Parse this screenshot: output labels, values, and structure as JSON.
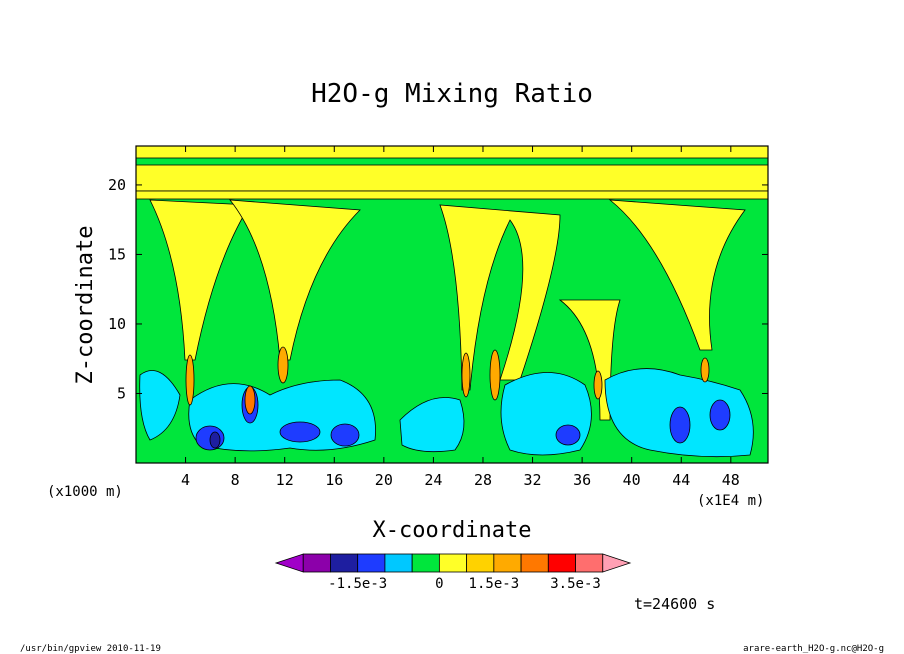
{
  "chart_data": {
    "type": "heatmap",
    "title": "H2O-g Mixing Ratio",
    "xlabel": "X-coordinate",
    "ylabel": "Z-coordinate",
    "x_unit_label": "(x1E4 m)",
    "y_unit_label": "(x1000 m)",
    "xlim": [
      0,
      51
    ],
    "ylim": [
      0,
      22.8
    ],
    "xticks": [
      4,
      8,
      12,
      16,
      20,
      24,
      28,
      32,
      36,
      40,
      44,
      48
    ],
    "yticks": [
      5,
      10,
      15,
      20
    ],
    "xtick_labels": [
      "4",
      "8",
      "12",
      "16",
      "20",
      "24",
      "28",
      "32",
      "36",
      "40",
      "44",
      "48"
    ],
    "ytick_labels": [
      "5",
      "10",
      "15",
      "20"
    ],
    "colorbar": {
      "levels": [
        "-1.5e-3",
        "0",
        "1.5e-3",
        "3.5e-3"
      ],
      "colors": [
        "#a000c8",
        "#8c00aa",
        "#1e1ea0",
        "#1e3cff",
        "#00c8ff",
        "#00e63c",
        "#ffff28",
        "#ffd200",
        "#ffaa00",
        "#ff7800",
        "#ff0000",
        "#ff6e6e",
        "#ffa0b4"
      ]
    },
    "annotation_time": "t=24600 s",
    "footer_left": "/usr/bin/gpview   2010-11-19",
    "footer_right": "arare-earth_H2O-g.nc@H2O-g"
  }
}
